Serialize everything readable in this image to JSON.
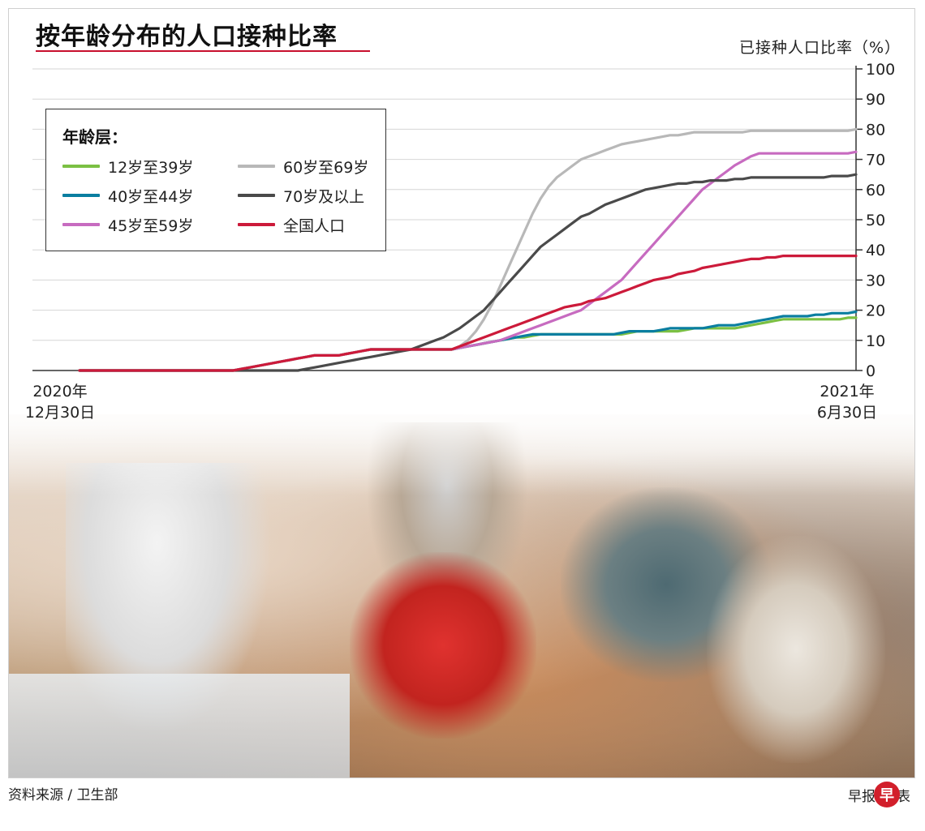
{
  "title": "按年龄分布的人口接种比率",
  "source": "资料来源 / 卫生部",
  "brand": {
    "before": "早报",
    "badge": "早",
    "after": "表"
  },
  "chart_data": {
    "type": "line",
    "ylabel": "已接种人口比率（%）",
    "ylim": [
      0,
      100
    ],
    "yticks": [
      0,
      10,
      20,
      30,
      40,
      50,
      60,
      70,
      80,
      90,
      100
    ],
    "x_start_label": [
      "2020年",
      "12月30日"
    ],
    "x_end_label": [
      "2021年",
      "6月30日"
    ],
    "grid": true,
    "legend_title": "年龄层：",
    "legend_position": "top-left",
    "x": [
      0,
      10,
      20,
      30,
      40,
      50,
      60,
      70,
      80,
      90,
      100,
      110,
      120,
      130,
      140,
      150,
      160,
      170,
      180,
      190,
      200,
      210,
      220,
      230,
      240,
      250,
      260,
      270,
      280,
      290,
      300,
      310,
      320,
      330,
      340,
      350,
      360,
      370,
      380,
      390,
      400,
      410,
      420,
      430,
      440,
      450,
      460,
      470,
      480,
      490,
      500,
      510,
      520,
      530,
      540,
      550,
      560,
      570,
      580,
      590,
      600,
      610,
      620,
      630,
      640,
      650,
      660,
      670,
      680,
      690,
      700,
      710,
      720,
      730,
      740,
      750,
      760,
      770,
      780,
      790,
      800,
      810,
      820,
      830,
      840,
      850,
      860,
      870,
      880,
      890,
      900,
      910,
      920,
      930,
      940,
      950,
      960
    ],
    "series": [
      {
        "name": "12岁至39岁",
        "color": "#7bc043",
        "values": [
          0,
          0,
          0,
          0,
          0,
          0,
          0,
          0,
          0,
          0,
          0,
          0,
          0,
          0,
          0,
          0,
          0,
          0,
          0,
          0,
          0.5,
          1,
          1.5,
          2,
          2.5,
          3,
          3.5,
          4,
          4.5,
          5,
          5,
          5,
          5,
          5.5,
          6,
          6.5,
          7,
          7,
          7,
          7,
          7,
          7,
          7,
          7,
          7,
          7,
          7,
          7.5,
          8,
          8.5,
          9,
          9.5,
          10,
          10.5,
          11,
          11,
          11.5,
          12,
          12,
          12,
          12,
          12,
          12,
          12,
          12,
          12,
          12,
          12,
          12.5,
          13,
          13,
          13,
          13,
          13,
          13,
          13.5,
          14,
          14,
          14,
          14,
          14,
          14,
          14.5,
          15,
          15.5,
          16,
          16.5,
          17,
          17,
          17,
          17,
          17,
          17,
          17,
          17,
          17.5,
          17.5
        ]
      },
      {
        "name": "40岁至44岁",
        "color": "#0a7ea0",
        "values": [
          0,
          0,
          0,
          0,
          0,
          0,
          0,
          0,
          0,
          0,
          0,
          0,
          0,
          0,
          0,
          0,
          0,
          0,
          0,
          0,
          0.5,
          1,
          1.5,
          2,
          2.5,
          3,
          3.5,
          4,
          4.5,
          5,
          5,
          5,
          5,
          5.5,
          6,
          6.5,
          7,
          7,
          7,
          7,
          7,
          7,
          7,
          7,
          7,
          7,
          7,
          7.5,
          8,
          8.5,
          9,
          9.5,
          10,
          10.5,
          11,
          11.5,
          12,
          12,
          12,
          12,
          12,
          12,
          12,
          12,
          12,
          12,
          12,
          12.5,
          13,
          13,
          13,
          13,
          13.5,
          14,
          14,
          14,
          14,
          14,
          14.5,
          15,
          15,
          15,
          15.5,
          16,
          16.5,
          17,
          17.5,
          18,
          18,
          18,
          18,
          18.5,
          18.5,
          19,
          19,
          19,
          19.5
        ]
      },
      {
        "name": "45岁至59岁",
        "color": "#c76bc0",
        "values": [
          0,
          0,
          0,
          0,
          0,
          0,
          0,
          0,
          0,
          0,
          0,
          0,
          0,
          0,
          0,
          0,
          0,
          0,
          0,
          0,
          0.5,
          1,
          1.5,
          2,
          2.5,
          3,
          3.5,
          4,
          4.5,
          5,
          5,
          5,
          5,
          5.5,
          6,
          6.5,
          7,
          7,
          7,
          7,
          7,
          7,
          7,
          7,
          7,
          7,
          7,
          7.5,
          8,
          8.5,
          9,
          9.5,
          10,
          11,
          12,
          13,
          14,
          15,
          16,
          17,
          18,
          19,
          20,
          22,
          24,
          26,
          28,
          30,
          33,
          36,
          39,
          42,
          45,
          48,
          51,
          54,
          57,
          60,
          62,
          64,
          66,
          68,
          69.5,
          71,
          72,
          72,
          72,
          72,
          72,
          72,
          72,
          72,
          72,
          72,
          72,
          72,
          72.5
        ]
      },
      {
        "name": "60岁至69岁",
        "color": "#b8b8b8",
        "values": [
          0,
          0,
          0,
          0,
          0,
          0,
          0,
          0,
          0,
          0,
          0,
          0,
          0,
          0,
          0,
          0,
          0,
          0,
          0,
          0,
          0.5,
          1,
          1.5,
          2,
          2.5,
          3,
          3.5,
          4,
          4.5,
          5,
          5,
          5,
          5,
          5.5,
          6,
          6.5,
          7,
          7,
          7,
          7,
          7,
          7,
          7,
          7,
          7,
          7,
          7,
          8,
          10,
          13,
          17,
          22,
          28,
          34,
          40,
          46,
          52,
          57,
          61,
          64,
          66,
          68,
          70,
          71,
          72,
          73,
          74,
          75,
          75.5,
          76,
          76.5,
          77,
          77.5,
          78,
          78,
          78.5,
          79,
          79,
          79,
          79,
          79,
          79,
          79,
          79.5,
          79.5,
          79.5,
          79.5,
          79.5,
          79.5,
          79.5,
          79.5,
          79.5,
          79.5,
          79.5,
          79.5,
          79.5,
          80
        ]
      },
      {
        "name": "70岁及以上",
        "color": "#4a4a4a",
        "values": [
          0,
          0,
          0,
          0,
          0,
          0,
          0,
          0,
          0,
          0,
          0,
          0,
          0,
          0,
          0,
          0,
          0,
          0,
          0,
          0,
          0,
          0,
          0,
          0,
          0,
          0,
          0,
          0,
          0.5,
          1,
          1.5,
          2,
          2.5,
          3,
          3.5,
          4,
          4.5,
          5,
          5.5,
          6,
          6.5,
          7,
          8,
          9,
          10,
          11,
          12.5,
          14,
          16,
          18,
          20,
          23,
          26,
          29,
          32,
          35,
          38,
          41,
          43,
          45,
          47,
          49,
          51,
          52,
          53.5,
          55,
          56,
          57,
          58,
          59,
          60,
          60.5,
          61,
          61.5,
          62,
          62,
          62.5,
          62.5,
          63,
          63,
          63,
          63.5,
          63.5,
          64,
          64,
          64,
          64,
          64,
          64,
          64,
          64,
          64,
          64,
          64.5,
          64.5,
          64.5,
          65
        ]
      },
      {
        "name": "全国人口",
        "color": "#cc1a3a",
        "values": [
          0,
          0,
          0,
          0,
          0,
          0,
          0,
          0,
          0,
          0,
          0,
          0,
          0,
          0,
          0,
          0,
          0,
          0,
          0,
          0,
          0.5,
          1,
          1.5,
          2,
          2.5,
          3,
          3.5,
          4,
          4.5,
          5,
          5,
          5,
          5,
          5.5,
          6,
          6.5,
          7,
          7,
          7,
          7,
          7,
          7,
          7,
          7,
          7,
          7,
          7,
          8,
          9,
          10,
          11,
          12,
          13,
          14,
          15,
          16,
          17,
          18,
          19,
          20,
          21,
          21.5,
          22,
          23,
          23.5,
          24,
          25,
          26,
          27,
          28,
          29,
          30,
          30.5,
          31,
          32,
          32.5,
          33,
          34,
          34.5,
          35,
          35.5,
          36,
          36.5,
          37,
          37,
          37.5,
          37.5,
          38,
          38,
          38,
          38,
          38,
          38,
          38,
          38,
          38,
          38
        ]
      }
    ]
  }
}
